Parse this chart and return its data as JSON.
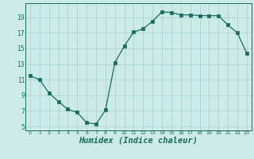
{
  "x": [
    0,
    1,
    2,
    3,
    4,
    5,
    6,
    7,
    8,
    9,
    10,
    11,
    12,
    13,
    14,
    15,
    16,
    17,
    18,
    19,
    20,
    21,
    22,
    23
  ],
  "y": [
    11.5,
    11.0,
    9.3,
    8.2,
    7.2,
    6.8,
    5.5,
    5.3,
    7.1,
    13.2,
    15.3,
    17.1,
    17.5,
    18.5,
    19.7,
    19.6,
    19.3,
    19.3,
    19.2,
    19.2,
    19.2,
    18.0,
    17.0,
    14.4
  ],
  "line_color": "#1a6b5a",
  "marker": "s",
  "marker_size": 2.2,
  "bg_color": "#cceae8",
  "grid_color": "#aad4d2",
  "tick_color": "#1a6b5a",
  "xlabel": "Humidex (Indice chaleur)",
  "xlabel_fontsize": 7.5,
  "ylabel_ticks": [
    5,
    7,
    9,
    11,
    13,
    15,
    17,
    19
  ],
  "xlim": [
    -0.5,
    23.5
  ],
  "ylim": [
    4.5,
    20.8
  ],
  "xtick_labels": [
    "0",
    "1",
    "2",
    "3",
    "4",
    "5",
    "6",
    "7",
    "8",
    "9",
    "10",
    "11",
    "12",
    "13",
    "14",
    "15",
    "16",
    "17",
    "18",
    "19",
    "20",
    "21",
    "22",
    "23"
  ]
}
